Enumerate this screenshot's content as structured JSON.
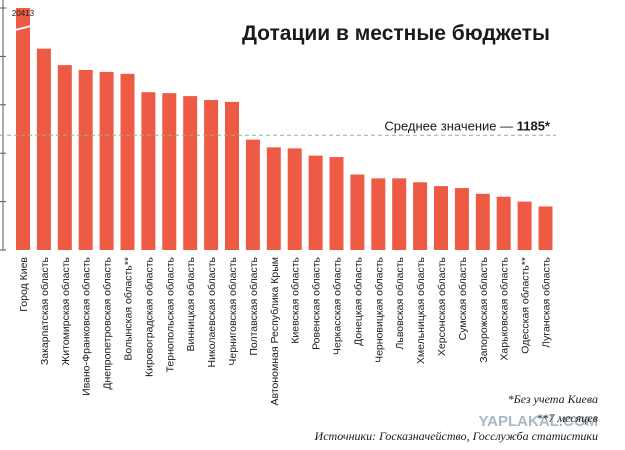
{
  "chart_data": {
    "type": "bar",
    "title": "Дотации в местные бюджеты",
    "categories": [
      "Город Киев",
      "Закарпатская область",
      "Житомирская область",
      "Ивано-Франковская область",
      "Днепропетровская область",
      "Волынская область**",
      "Кировоградская область",
      "Тернопольская область",
      "Винницкая область",
      "Николаевская область",
      "Черниговская область",
      "Полтавская область",
      "Автономная Республика Крым",
      "Киевская область",
      "Ровенская область",
      "Черкасская область",
      "Донецкая область",
      "Черновицкая область",
      "Львовская область",
      "Хмельницкая область",
      "Херсонская область",
      "Сумская область",
      "Запорожская область",
      "Харьковская область",
      "Одесская область**",
      "Луганская область"
    ],
    "values": [
      20413,
      2080,
      1910,
      1860,
      1840,
      1820,
      1630,
      1620,
      1590,
      1550,
      1530,
      1140,
      1060,
      1050,
      975,
      960,
      780,
      740,
      740,
      700,
      660,
      640,
      580,
      550,
      500,
      450
    ],
    "data_labels": {
      "0": "20413"
    },
    "axis_break": true,
    "average": {
      "label": "Среднее значение — ",
      "value": 1185,
      "value_text": "1185*"
    },
    "ylim": [
      0,
      2500
    ],
    "bar_color": "#ee5b45",
    "average_line_color": "#7fc07f"
  },
  "notes": {
    "note1": "*Без учета Киева",
    "note2": "**7 месяцев",
    "sources": "Источники: Госказначейство, Госслужба статистики"
  },
  "watermark": "YAPLAKAL.COM"
}
